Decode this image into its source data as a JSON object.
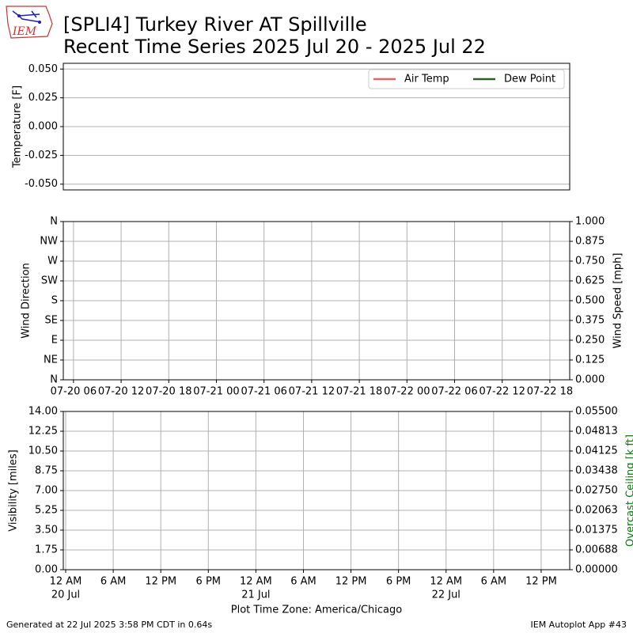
{
  "header": {
    "title": "[SPLI4] Turkey River  AT Spillville",
    "subtitle": "Recent Time Series 2025 Jul 20 - 2025 Jul 22",
    "logo_text": "IEM"
  },
  "footer": {
    "left": "Generated at 22 Jul 2025 3:58 PM CDT in 0.64s",
    "right": "IEM Autoplot App #43"
  },
  "chart_data": [
    {
      "type": "line",
      "ylabel": "Temperature [F]",
      "ylim": [
        -0.055,
        0.055
      ],
      "yticks": [
        {
          "value": -0.05,
          "label": "-0.050"
        },
        {
          "value": -0.025,
          "label": "-0.025"
        },
        {
          "value": 0,
          "label": "0.000"
        },
        {
          "value": 0.025,
          "label": "0.025"
        },
        {
          "value": 0.05,
          "label": "0.050"
        }
      ],
      "grid": true,
      "legend": "upper right",
      "series": [
        {
          "name": "Air Temp",
          "color": "#e06666",
          "values": []
        },
        {
          "name": "Dew Point",
          "color": "#2e5e2e",
          "values": []
        }
      ]
    },
    {
      "type": "line",
      "ylabel": "Wind Direction",
      "y2label": "Wind Speed [mph]",
      "ylim": [
        0,
        360
      ],
      "yticks": [
        {
          "value": 0,
          "label": "N"
        },
        {
          "value": 45,
          "label": "NE"
        },
        {
          "value": 90,
          "label": "E"
        },
        {
          "value": 135,
          "label": "SE"
        },
        {
          "value": 180,
          "label": "S"
        },
        {
          "value": 225,
          "label": "SW"
        },
        {
          "value": 270,
          "label": "W"
        },
        {
          "value": 315,
          "label": "NW"
        },
        {
          "value": 360,
          "label": "N"
        }
      ],
      "y2lim": [
        0,
        1
      ],
      "y2ticks": [
        {
          "value": 0,
          "label": "0.000"
        },
        {
          "value": 0.125,
          "label": "0.125"
        },
        {
          "value": 0.25,
          "label": "0.250"
        },
        {
          "value": 0.375,
          "label": "0.375"
        },
        {
          "value": 0.5,
          "label": "0.500"
        },
        {
          "value": 0.625,
          "label": "0.625"
        },
        {
          "value": 0.75,
          "label": "0.750"
        },
        {
          "value": 0.875,
          "label": "0.875"
        },
        {
          "value": 1,
          "label": "1.000"
        }
      ],
      "xlim": [
        "07-20 04:43",
        "07-22 20:30"
      ],
      "xticks": [
        {
          "value": "07-20 06:00",
          "label": "07-20 06"
        },
        {
          "value": "07-20 12:00",
          "label": "07-20 12"
        },
        {
          "value": "07-20 18:00",
          "label": "07-20 18"
        },
        {
          "value": "07-21 00:00",
          "label": "07-21 00"
        },
        {
          "value": "07-21 06:00",
          "label": "07-21 06"
        },
        {
          "value": "07-21 12:00",
          "label": "07-21 12"
        },
        {
          "value": "07-21 18:00",
          "label": "07-21 18"
        },
        {
          "value": "07-22 00:00",
          "label": "07-22 00"
        },
        {
          "value": "07-22 06:00",
          "label": "07-22 06"
        },
        {
          "value": "07-22 12:00",
          "label": "07-22 12"
        },
        {
          "value": "07-22 18:00",
          "label": "07-22 18"
        }
      ],
      "grid": true
    },
    {
      "type": "line",
      "ylabel": "Visibility [miles]",
      "y2label": "Overcast Ceiling [k ft]",
      "y2label_color": "#008000",
      "xlabel": "Plot Time Zone: America/Chicago",
      "ylim": [
        0,
        14
      ],
      "yticks": [
        {
          "value": 0,
          "label": "0.00"
        },
        {
          "value": 1.75,
          "label": "1.75"
        },
        {
          "value": 3.5,
          "label": "3.50"
        },
        {
          "value": 5.25,
          "label": "5.25"
        },
        {
          "value": 7,
          "label": "7.00"
        },
        {
          "value": 8.75,
          "label": "8.75"
        },
        {
          "value": 10.5,
          "label": "10.50"
        },
        {
          "value": 12.25,
          "label": "12.25"
        },
        {
          "value": 14,
          "label": "14.00"
        }
      ],
      "y2lim": [
        0,
        0.055
      ],
      "y2ticks": [
        {
          "value": 0,
          "label": "0.00000"
        },
        {
          "value": 0.006875,
          "label": "0.00688"
        },
        {
          "value": 0.01375,
          "label": "0.01375"
        },
        {
          "value": 0.020625,
          "label": "0.02063"
        },
        {
          "value": 0.0275,
          "label": "0.02750"
        },
        {
          "value": 0.034375,
          "label": "0.03438"
        },
        {
          "value": 0.04125,
          "label": "0.04125"
        },
        {
          "value": 0.048125,
          "label": "0.04813"
        },
        {
          "value": 0.055,
          "label": "0.05500"
        }
      ],
      "xlim": [
        "07-19 23:42",
        "07-22 15:36"
      ],
      "xticks": [
        {
          "value": "07-20 00:00",
          "label": "12 AM"
        },
        {
          "value": "07-20 06:00",
          "label": "6 AM"
        },
        {
          "value": "07-20 12:00",
          "label": "12 PM"
        },
        {
          "value": "07-20 18:00",
          "label": "6 PM"
        },
        {
          "value": "07-21 00:00",
          "label": "12 AM"
        },
        {
          "value": "07-21 06:00",
          "label": "6 AM"
        },
        {
          "value": "07-21 12:00",
          "label": "12 PM"
        },
        {
          "value": "07-21 18:00",
          "label": "6 PM"
        },
        {
          "value": "07-22 00:00",
          "label": "12 AM"
        },
        {
          "value": "07-22 06:00",
          "label": "6 AM"
        },
        {
          "value": "07-22 12:00",
          "label": "12 PM"
        }
      ],
      "xtick_dates": [
        {
          "value": "07-20 00:00",
          "label": "20 Jul"
        },
        {
          "value": "07-21 00:00",
          "label": "21 Jul"
        },
        {
          "value": "07-22 00:00",
          "label": "22 Jul"
        }
      ],
      "grid": true
    }
  ]
}
